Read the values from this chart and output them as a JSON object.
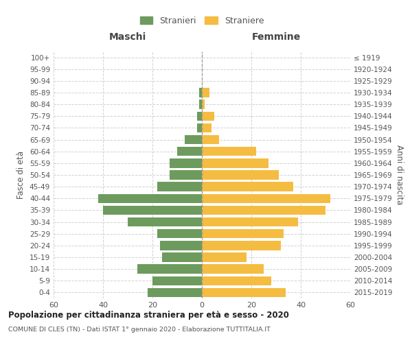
{
  "age_groups": [
    "0-4",
    "5-9",
    "10-14",
    "15-19",
    "20-24",
    "25-29",
    "30-34",
    "35-39",
    "40-44",
    "45-49",
    "50-54",
    "55-59",
    "60-64",
    "65-69",
    "70-74",
    "75-79",
    "80-84",
    "85-89",
    "90-94",
    "95-99",
    "100+"
  ],
  "birth_years": [
    "2015-2019",
    "2010-2014",
    "2005-2009",
    "2000-2004",
    "1995-1999",
    "1990-1994",
    "1985-1989",
    "1980-1984",
    "1975-1979",
    "1970-1974",
    "1965-1969",
    "1960-1964",
    "1955-1959",
    "1950-1954",
    "1945-1949",
    "1940-1944",
    "1935-1939",
    "1930-1934",
    "1925-1929",
    "1920-1924",
    "≤ 1919"
  ],
  "males": [
    22,
    20,
    26,
    16,
    17,
    18,
    30,
    40,
    42,
    18,
    13,
    13,
    10,
    7,
    2,
    2,
    1,
    1,
    0,
    0,
    0
  ],
  "females": [
    34,
    28,
    25,
    18,
    32,
    33,
    39,
    50,
    52,
    37,
    31,
    27,
    22,
    7,
    4,
    5,
    1,
    3,
    0,
    0,
    0
  ],
  "male_color": "#6d9b5e",
  "female_color": "#f5bc42",
  "background_color": "#ffffff",
  "grid_color": "#cccccc",
  "title": "Popolazione per cittadinanza straniera per età e sesso - 2020",
  "subtitle": "COMUNE DI CLES (TN) - Dati ISTAT 1° gennaio 2020 - Elaborazione TUTTITALIA.IT",
  "ylabel_left": "Fasce di età",
  "ylabel_right": "Anni di nascita",
  "label_maschi": "Maschi",
  "label_femmine": "Femmine",
  "legend_male": "Stranieri",
  "legend_female": "Straniere",
  "xlim": 60,
  "bar_height": 0.78
}
